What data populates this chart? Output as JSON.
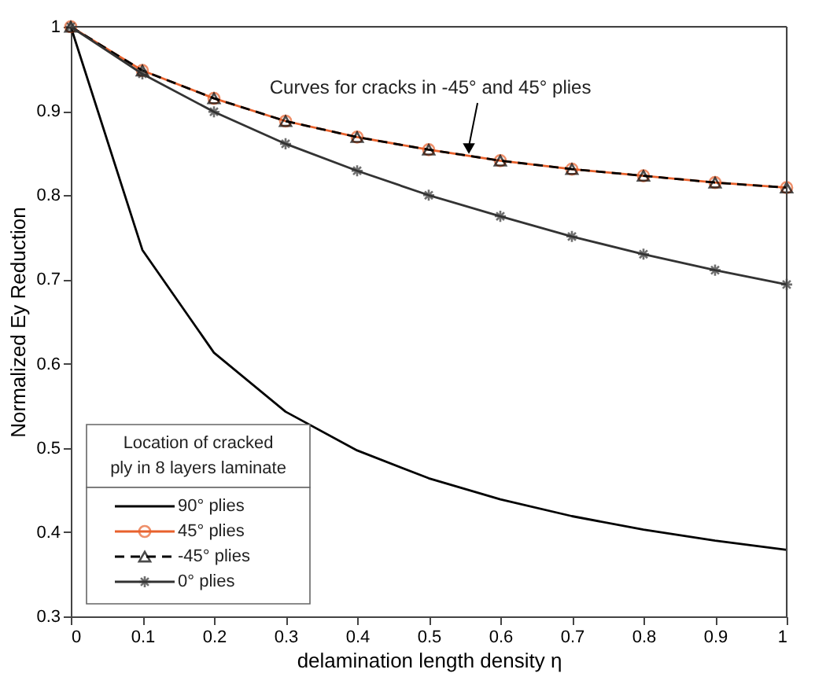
{
  "chart_data": {
    "type": "line",
    "xlabel": "delamination length density η",
    "ylabel": "Normalized Ey Reduction",
    "legend_title": "Location of cracked\nply in 8 layers laminate",
    "x": [
      0,
      0.1,
      0.2,
      0.3,
      0.4,
      0.5,
      0.6,
      0.7,
      0.8,
      0.9,
      1
    ],
    "series": [
      {
        "name": "90° plies",
        "color": "#000000",
        "marker": "none",
        "line_style": "solid",
        "values": [
          1,
          0.735,
          0.613,
          0.543,
          0.497,
          0.464,
          0.439,
          0.419,
          0.403,
          0.39,
          0.379
        ]
      },
      {
        "name": "45° plies",
        "color": "#e8612c",
        "marker": "circle",
        "line_style": "solid",
        "values": [
          1,
          0.948,
          0.915,
          0.888,
          0.869,
          0.854,
          0.841,
          0.831,
          0.823,
          0.815,
          0.809
        ]
      },
      {
        "name": "-45° plies",
        "color": "#000000",
        "marker": "triangle",
        "line_style": "dashed",
        "values": [
          1,
          0.948,
          0.915,
          0.888,
          0.869,
          0.854,
          0.841,
          0.831,
          0.823,
          0.815,
          0.809
        ]
      },
      {
        "name": "0° plies",
        "color": "#333333",
        "marker": "cross",
        "line_style": "solid",
        "values": [
          1,
          0.944,
          0.899,
          0.861,
          0.829,
          0.8,
          0.775,
          0.751,
          0.73,
          0.711,
          0.694
        ]
      }
    ],
    "annotations": [
      {
        "text": "Curves for cracks in -45° and 45° plies",
        "x": 0.555,
        "y": 0.846
      }
    ],
    "xlim": [
      0,
      1
    ],
    "ylim": [
      0.3,
      1
    ],
    "xticks": [
      0,
      0.1,
      0.2,
      0.3,
      0.4,
      0.5,
      0.6,
      0.7,
      0.8,
      0.9,
      1
    ],
    "yticks": [
      0.3,
      0.4,
      0.5,
      0.6,
      0.7,
      0.8,
      0.9,
      1
    ],
    "grid": false,
    "legend": "bottom left"
  }
}
